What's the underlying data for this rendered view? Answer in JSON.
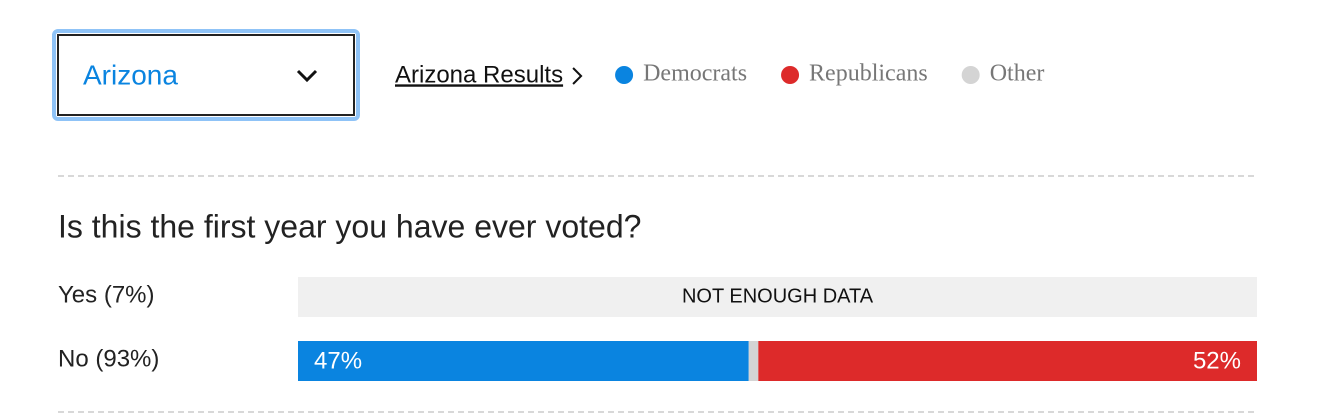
{
  "chart_data": {
    "type": "stacked-bar",
    "selector": "Arizona",
    "link": "Arizona Results",
    "title": "Is this the first year you have ever voted?",
    "categories": [
      "Yes (7%)",
      "No (93%)"
    ],
    "no_data_label": "NOT ENOUGH DATA",
    "xlim": [
      0,
      100
    ],
    "series": [
      {
        "name": "Democrats",
        "color": "#0a84e0",
        "values": [
          null,
          47
        ],
        "value_labels": [
          null,
          "47%"
        ]
      },
      {
        "name": "Republicans",
        "color": "#dd2a2a",
        "values": [
          null,
          52
        ],
        "value_labels": [
          null,
          "52%"
        ]
      },
      {
        "name": "Other",
        "color": "#d4d4d4",
        "values": [
          null,
          1
        ]
      }
    ]
  }
}
